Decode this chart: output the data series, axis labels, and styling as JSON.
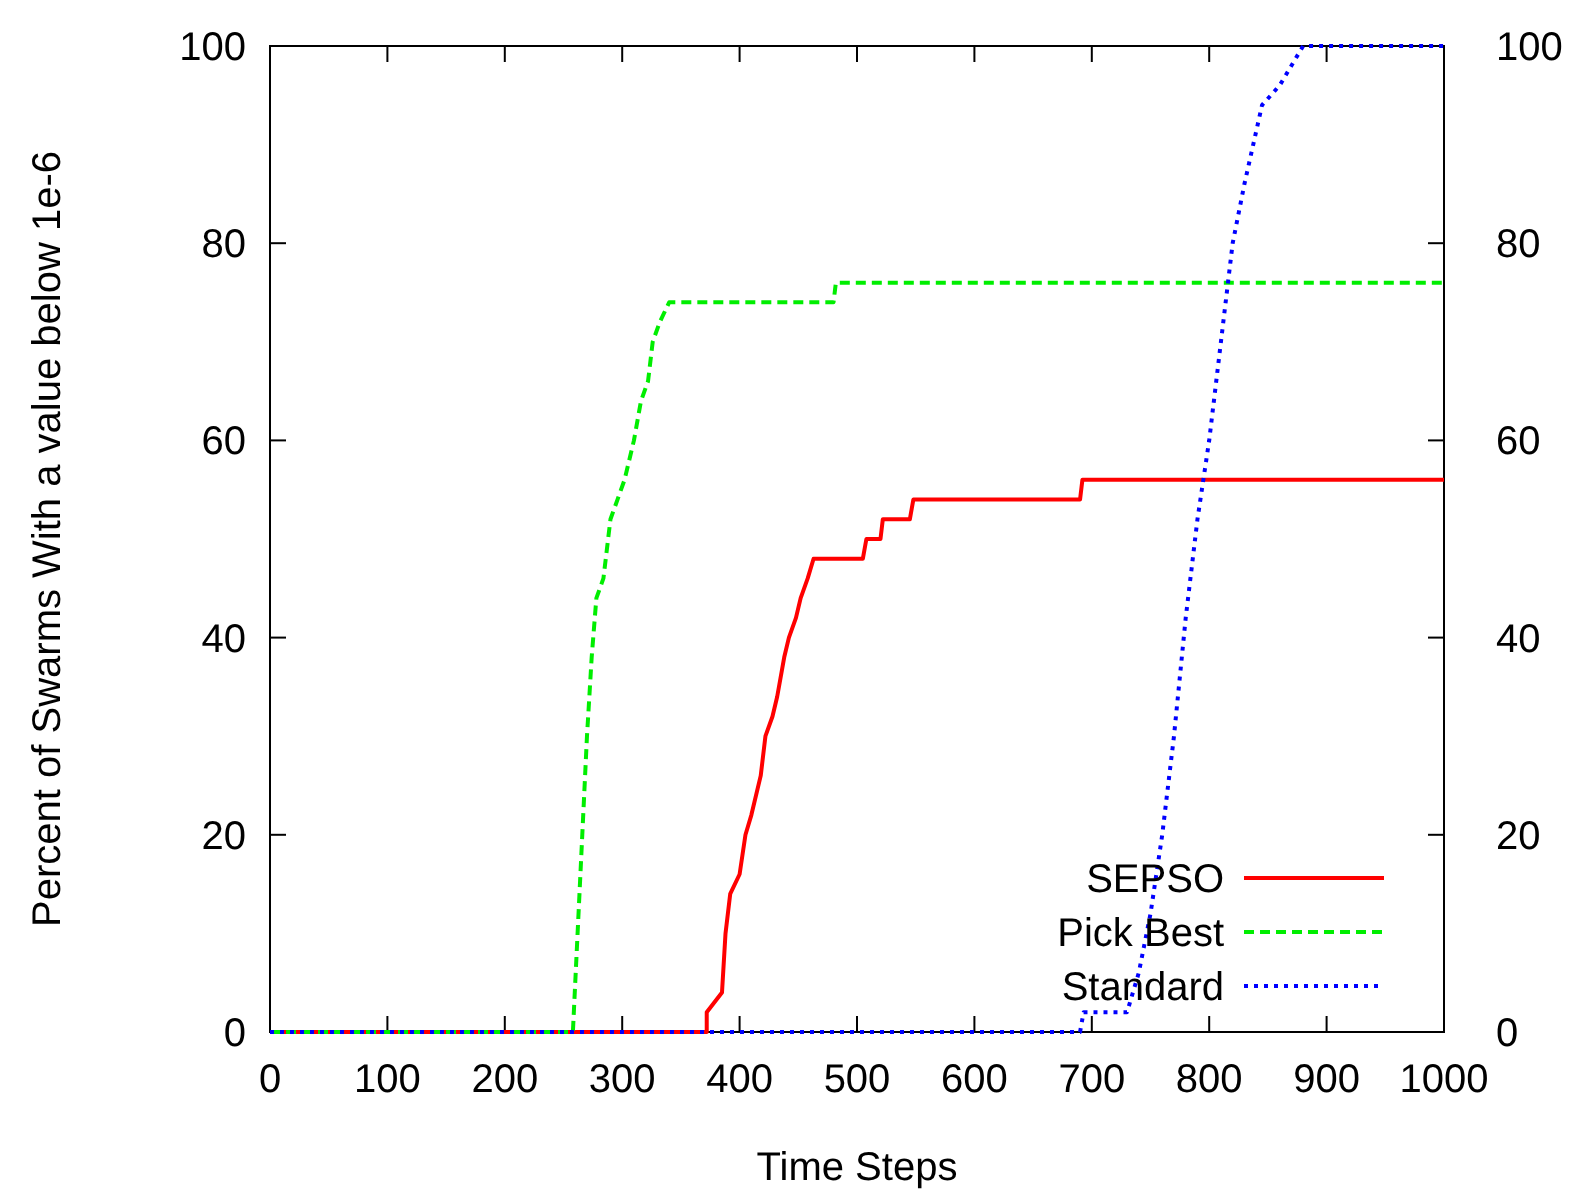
{
  "chart_data": {
    "type": "line",
    "xlabel": "Time Steps",
    "ylabel": "Percent of Swarms With a value below 1e-6",
    "xlim": [
      0,
      1000
    ],
    "xticks": [
      0,
      100,
      200,
      300,
      400,
      500,
      600,
      700,
      800,
      900,
      1000
    ],
    "ylim": [
      0,
      100
    ],
    "yticks": [
      0,
      20,
      40,
      60,
      80,
      100
    ],
    "y2lim": [
      0,
      100
    ],
    "y2ticks": [
      0,
      20,
      40,
      60,
      80,
      100
    ],
    "legend": "bottom right",
    "grid": false,
    "series": [
      {
        "name": "SEPSO",
        "color": "#ff0000",
        "line_style": "solid",
        "x": [
          0,
          372,
          372,
          385,
          388,
          392,
          400,
          405,
          410,
          418,
          422,
          428,
          432,
          438,
          442,
          448,
          452,
          458,
          463,
          505,
          508,
          520,
          522,
          545,
          548,
          690,
          692,
          1000
        ],
        "values": [
          0,
          0,
          2,
          4,
          10,
          14,
          16,
          20,
          22,
          26,
          30,
          32,
          34,
          38,
          40,
          42,
          44,
          46,
          48,
          48,
          50,
          50,
          52,
          52,
          54,
          54,
          56,
          56
        ]
      },
      {
        "name": "Pick Best",
        "color": "#00ee00",
        "line_style": "dashed",
        "x": [
          0,
          258,
          262,
          266,
          270,
          274,
          278,
          284,
          290,
          296,
          302,
          310,
          316,
          322,
          326,
          332,
          340,
          480,
          482,
          1000
        ],
        "values": [
          0,
          0,
          10,
          20,
          30,
          38,
          44,
          46,
          52,
          54,
          56,
          60,
          64,
          66,
          70,
          72,
          74,
          74,
          76,
          76
        ]
      },
      {
        "name": "Standard",
        "color": "#0000ff",
        "line_style": "dotted",
        "x": [
          0,
          690,
          693,
          730,
          740,
          750,
          760,
          770,
          780,
          790,
          800,
          810,
          820,
          830,
          845,
          860,
          870,
          880,
          1000
        ],
        "values": [
          0,
          0,
          2,
          2,
          6,
          12,
          20,
          30,
          42,
          52,
          60,
          70,
          80,
          86,
          94,
          96,
          98,
          100,
          100
        ]
      }
    ]
  }
}
